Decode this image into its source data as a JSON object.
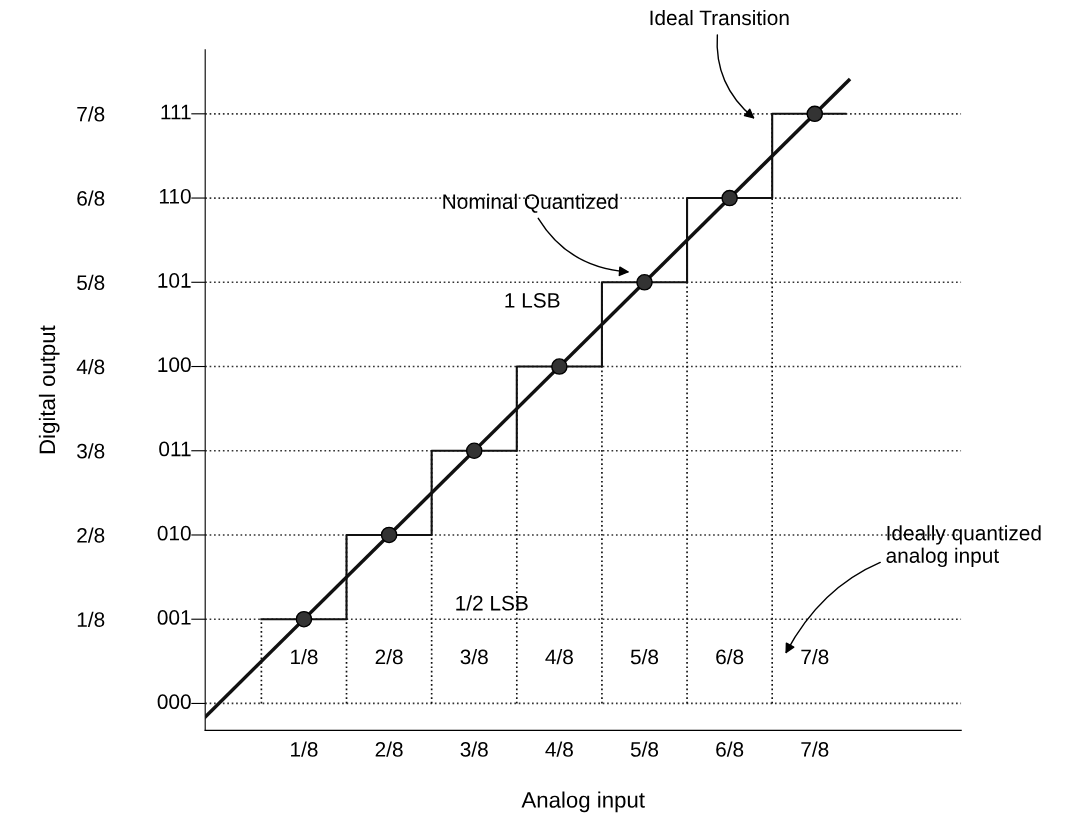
{
  "chart_data": {
    "type": "line",
    "xlabel": "Analog input",
    "ylabel": "Digital output",
    "xlim": [
      -0.02,
      1.09
    ],
    "ylim": [
      -0.04,
      0.97
    ],
    "xticks": [
      {
        "value": 0.125,
        "label": "1/8"
      },
      {
        "value": 0.25,
        "label": "2/8"
      },
      {
        "value": 0.375,
        "label": "3/8"
      },
      {
        "value": 0.5,
        "label": "4/8"
      },
      {
        "value": 0.625,
        "label": "5/8"
      },
      {
        "value": 0.75,
        "label": "6/8"
      },
      {
        "value": 0.875,
        "label": "7/8"
      }
    ],
    "yticks": [
      {
        "value": 0,
        "label": null
      },
      {
        "value": 0.125,
        "label": "1/8"
      },
      {
        "value": 0.25,
        "label": "2/8"
      },
      {
        "value": 0.375,
        "label": "3/8"
      },
      {
        "value": 0.5,
        "label": "4/8"
      },
      {
        "value": 0.625,
        "label": "5/8"
      },
      {
        "value": 0.75,
        "label": "6/8"
      },
      {
        "value": 0.875,
        "label": "7/8"
      }
    ],
    "grid": "y",
    "ref_lines": [
      {
        "axis": "x",
        "value": 0.0625,
        "line_style": "dotted",
        "color": "#111111"
      },
      {
        "axis": "x",
        "value": 0.1875,
        "line_style": "dotted",
        "color": "#111111"
      },
      {
        "axis": "x",
        "value": 0.3125,
        "line_style": "dotted",
        "color": "#111111"
      },
      {
        "axis": "x",
        "value": 0.4375,
        "line_style": "dotted",
        "color": "#111111"
      },
      {
        "axis": "x",
        "value": 0.5625,
        "line_style": "dotted",
        "color": "#111111"
      },
      {
        "axis": "x",
        "value": 0.6875,
        "line_style": "dotted",
        "color": "#111111"
      },
      {
        "axis": "x",
        "value": 0.8125,
        "line_style": "dotted",
        "color": "#111111"
      }
    ],
    "series": [
      {
        "color": "#111111",
        "x": [
          -0.02,
          0.925
        ],
        "values": [
          -0.02,
          0.925
        ]
      },
      {
        "type": "step",
        "color": "#111111",
        "x": [
          0.0625,
          0.1875,
          0.3125,
          0.4375,
          0.5625,
          0.6875,
          0.8125,
          0.92
        ],
        "values": [
          0.125,
          0.25,
          0.375,
          0.5,
          0.625,
          0.75,
          0.875,
          0.875
        ]
      },
      {
        "type": "scatter",
        "color": "#333333",
        "marker": "circle",
        "x": [
          0.125,
          0.25,
          0.375,
          0.5,
          0.625,
          0.75,
          0.875
        ],
        "values": [
          0.125,
          0.25,
          0.375,
          0.5,
          0.625,
          0.75,
          0.875
        ]
      }
    ],
    "annotations": [
      "Ideal Transition",
      "Nominal Quantized",
      "1 LSB",
      "1/2 LSB",
      "Ideally quantized\nanalog input",
      "1/8",
      "2/8",
      "3/8",
      "4/8",
      "5/8",
      "6/8",
      "7/8",
      "000",
      "001",
      "010",
      "011",
      "100",
      "101",
      "110",
      "111"
    ]
  }
}
